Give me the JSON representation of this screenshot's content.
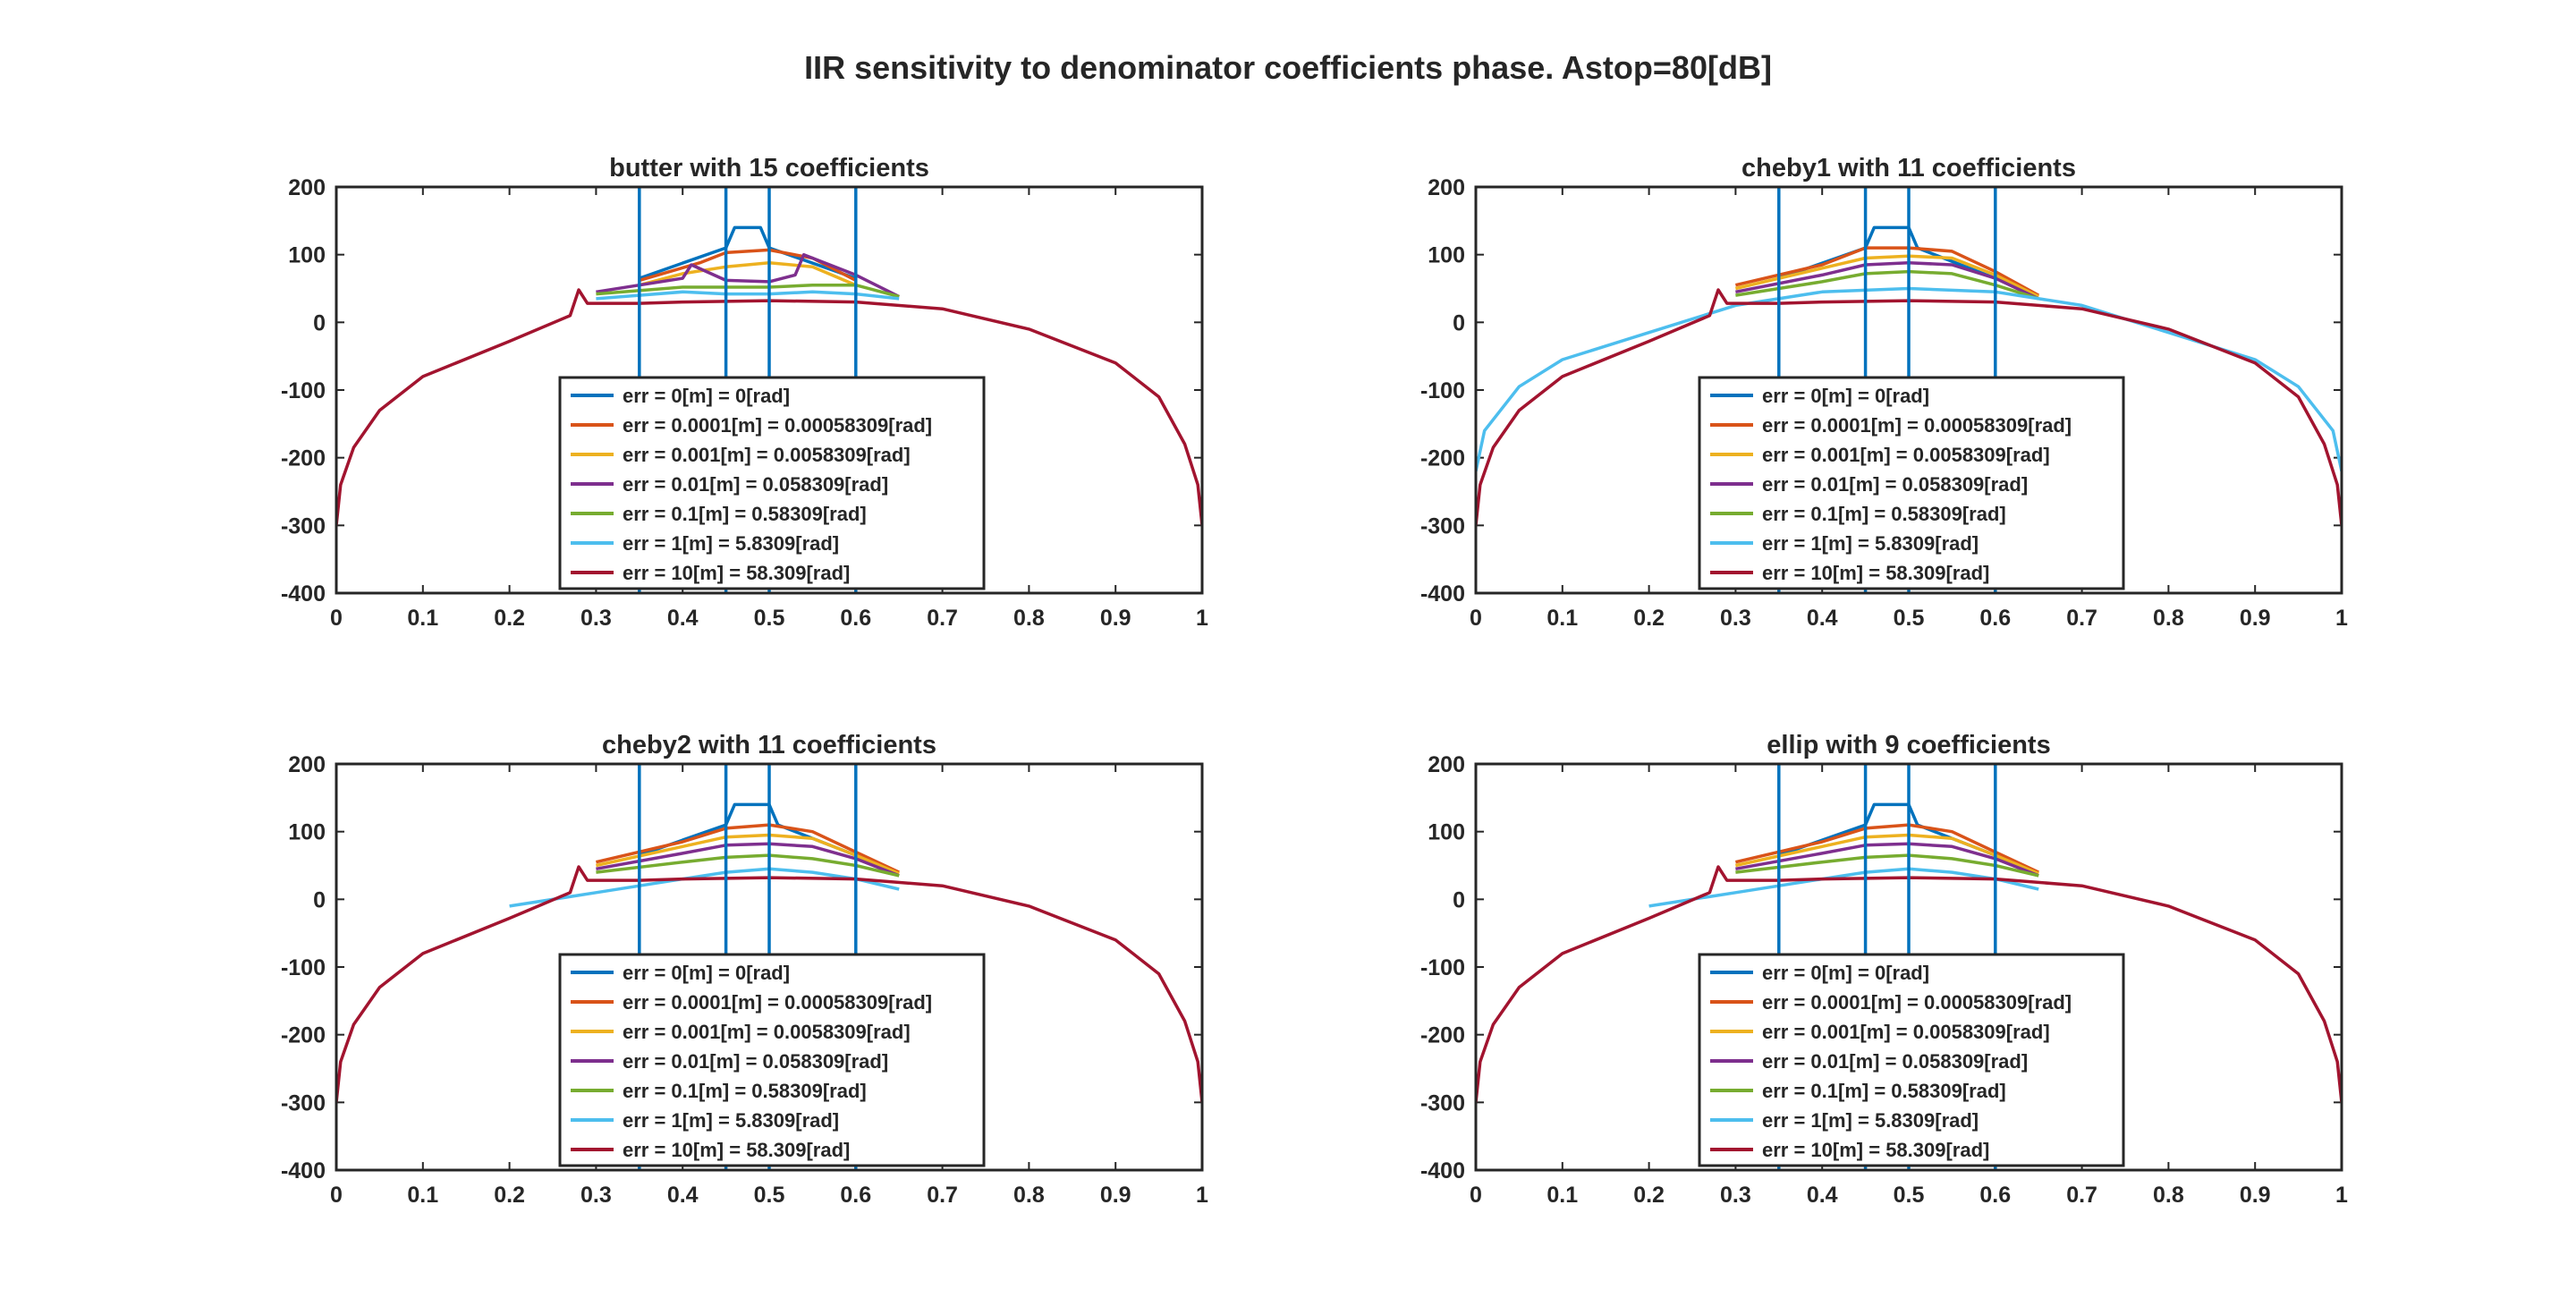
{
  "figure_title": "IIR sensitivity to denominator coefficients phase. Astop=80[dB]",
  "colors": {
    "series": [
      "#0072BD",
      "#D95319",
      "#EDB120",
      "#7E2F8E",
      "#77AC30",
      "#4DBEEE",
      "#A2142F"
    ],
    "axes": "#262626",
    "marker_lines": "#0072BD"
  },
  "legend_entries": [
    "err = 0[m] = 0[rad]",
    "err = 0.0001[m] = 0.00058309[rad]",
    "err = 0.001[m] = 0.0058309[rad]",
    "err = 0.01[m] = 0.058309[rad]",
    "err = 0.1[m] = 0.58309[rad]",
    "err = 1[m] = 5.8309[rad]",
    "err = 10[m] = 58.309[rad]"
  ],
  "chart_data": [
    {
      "type": "line",
      "title": "butter with 15 coefficients",
      "xlim": [
        0,
        1
      ],
      "ylim": [
        -400,
        200
      ],
      "xticks": [
        "0",
        "0.1",
        "0.2",
        "0.3",
        "0.4",
        "0.5",
        "0.6",
        "0.7",
        "0.8",
        "0.9",
        "1"
      ],
      "yticks": [
        "200",
        "100",
        "0",
        "-100",
        "-200",
        "-300",
        "-400"
      ],
      "band_edges": [
        0.35,
        0.45,
        0.5,
        0.6
      ],
      "series": [
        {
          "name": "err = 0[m] = 0[rad]",
          "x": [
            0.35,
            0.45,
            0.46,
            0.49,
            0.5,
            0.6
          ],
          "y": [
            65,
            110,
            140,
            140,
            110,
            65
          ]
        },
        {
          "name": "err = 0.0001[m] = 0.00058309[rad]",
          "x": [
            0.35,
            0.42,
            0.45,
            0.5,
            0.55,
            0.6
          ],
          "y": [
            62,
            88,
            103,
            107,
            95,
            62
          ]
        },
        {
          "name": "err = 0.001[m] = 0.0058309[rad]",
          "x": [
            0.35,
            0.4,
            0.45,
            0.5,
            0.55,
            0.6
          ],
          "y": [
            55,
            72,
            82,
            88,
            82,
            55
          ]
        },
        {
          "name": "err = 0.01[m] = 0.058309[rad]",
          "x": [
            0.3,
            0.4,
            0.41,
            0.45,
            0.5,
            0.53,
            0.54,
            0.6,
            0.65
          ],
          "y": [
            45,
            65,
            85,
            62,
            60,
            70,
            100,
            70,
            38
          ]
        },
        {
          "name": "err = 0.1[m] = 0.58309[rad]",
          "x": [
            0.3,
            0.4,
            0.45,
            0.5,
            0.55,
            0.6,
            0.65
          ],
          "y": [
            42,
            52,
            52,
            52,
            55,
            55,
            38
          ]
        },
        {
          "name": "err = 1[m] = 5.8309[rad]",
          "x": [
            0.3,
            0.35,
            0.4,
            0.45,
            0.5,
            0.55,
            0.6,
            0.65
          ],
          "y": [
            35,
            40,
            45,
            42,
            42,
            45,
            42,
            35
          ]
        },
        {
          "name": "err = 10[m] = 58.309[rad]",
          "x": [
            0,
            0.005,
            0.02,
            0.05,
            0.1,
            0.2,
            0.27,
            0.28,
            0.29,
            0.35,
            0.4,
            0.5,
            0.6,
            0.7,
            0.8,
            0.9,
            0.95,
            0.98,
            0.995,
            1
          ],
          "y": [
            -300,
            -240,
            -185,
            -130,
            -80,
            -28,
            10,
            48,
            28,
            28,
            30,
            32,
            30,
            20,
            -10,
            -60,
            -110,
            -180,
            -240,
            -300
          ]
        }
      ]
    },
    {
      "type": "line",
      "title": "cheby1 with 11 coefficients",
      "xlim": [
        0,
        1
      ],
      "ylim": [
        -400,
        200
      ],
      "xticks": [
        "0",
        "0.1",
        "0.2",
        "0.3",
        "0.4",
        "0.5",
        "0.6",
        "0.7",
        "0.8",
        "0.9",
        "1"
      ],
      "yticks": [
        "200",
        "100",
        "0",
        "-100",
        "-200",
        "-300",
        "-400"
      ],
      "band_edges": [
        0.35,
        0.45,
        0.5,
        0.6
      ],
      "series": [
        {
          "name": "err = 0[m] = 0[rad]",
          "x": [
            0.35,
            0.45,
            0.46,
            0.5,
            0.51,
            0.6
          ],
          "y": [
            65,
            110,
            140,
            140,
            110,
            65
          ]
        },
        {
          "name": "err = 0.0001[m] = 0.00058309[rad]",
          "x": [
            0.3,
            0.4,
            0.45,
            0.5,
            0.55,
            0.6,
            0.65
          ],
          "y": [
            55,
            85,
            110,
            110,
            105,
            75,
            40
          ]
        },
        {
          "name": "err = 0.001[m] = 0.0058309[rad]",
          "x": [
            0.3,
            0.4,
            0.45,
            0.5,
            0.55,
            0.6,
            0.65
          ],
          "y": [
            50,
            80,
            95,
            98,
            95,
            70,
            38
          ]
        },
        {
          "name": "err = 0.01[m] = 0.058309[rad]",
          "x": [
            0.3,
            0.4,
            0.45,
            0.5,
            0.55,
            0.6,
            0.65
          ],
          "y": [
            45,
            70,
            85,
            88,
            85,
            65,
            35
          ]
        },
        {
          "name": "err = 0.1[m] = 0.58309[rad]",
          "x": [
            0.3,
            0.4,
            0.45,
            0.5,
            0.55,
            0.6,
            0.65
          ],
          "y": [
            40,
            60,
            72,
            75,
            72,
            55,
            35
          ]
        },
        {
          "name": "err = 1[m] = 5.8309[rad]",
          "x": [
            0,
            0.01,
            0.05,
            0.1,
            0.2,
            0.3,
            0.4,
            0.5,
            0.6,
            0.7,
            0.8,
            0.9,
            0.95,
            0.99,
            1
          ],
          "y": [
            -220,
            -160,
            -95,
            -55,
            -15,
            25,
            45,
            50,
            45,
            25,
            -15,
            -55,
            -95,
            -160,
            -220
          ]
        },
        {
          "name": "err = 10[m] = 58.309[rad]",
          "x": [
            0,
            0.005,
            0.02,
            0.05,
            0.1,
            0.2,
            0.27,
            0.28,
            0.29,
            0.35,
            0.4,
            0.5,
            0.6,
            0.7,
            0.8,
            0.9,
            0.95,
            0.98,
            0.995,
            1
          ],
          "y": [
            -300,
            -240,
            -185,
            -130,
            -80,
            -28,
            10,
            48,
            28,
            28,
            30,
            32,
            30,
            20,
            -10,
            -60,
            -110,
            -180,
            -240,
            -300
          ]
        }
      ]
    },
    {
      "type": "line",
      "title": "cheby2 with 11 coefficients",
      "xlim": [
        0,
        1
      ],
      "ylim": [
        -400,
        200
      ],
      "xticks": [
        "0",
        "0.1",
        "0.2",
        "0.3",
        "0.4",
        "0.5",
        "0.6",
        "0.7",
        "0.8",
        "0.9",
        "1"
      ],
      "yticks": [
        "200",
        "100",
        "0",
        "-100",
        "-200",
        "-300",
        "-400"
      ],
      "band_edges": [
        0.35,
        0.45,
        0.5,
        0.6
      ],
      "series": [
        {
          "name": "err = 0[m] = 0[rad]",
          "x": [
            0.35,
            0.45,
            0.46,
            0.5,
            0.51,
            0.6
          ],
          "y": [
            65,
            110,
            140,
            140,
            110,
            65
          ]
        },
        {
          "name": "err = 0.0001[m] = 0.00058309[rad]",
          "x": [
            0.3,
            0.4,
            0.45,
            0.5,
            0.55,
            0.6,
            0.65
          ],
          "y": [
            55,
            85,
            105,
            110,
            100,
            70,
            40
          ]
        },
        {
          "name": "err = 0.001[m] = 0.0058309[rad]",
          "x": [
            0.3,
            0.4,
            0.45,
            0.5,
            0.55,
            0.6,
            0.65
          ],
          "y": [
            50,
            78,
            92,
            95,
            90,
            65,
            38
          ]
        },
        {
          "name": "err = 0.01[m] = 0.058309[rad]",
          "x": [
            0.3,
            0.4,
            0.45,
            0.5,
            0.55,
            0.6,
            0.65
          ],
          "y": [
            45,
            68,
            80,
            82,
            78,
            60,
            35
          ]
        },
        {
          "name": "err = 0.1[m] = 0.58309[rad]",
          "x": [
            0.3,
            0.4,
            0.45,
            0.5,
            0.55,
            0.6,
            0.65
          ],
          "y": [
            40,
            55,
            62,
            65,
            60,
            50,
            35
          ]
        },
        {
          "name": "err = 1[m] = 5.8309[rad]",
          "x": [
            0.2,
            0.3,
            0.35,
            0.4,
            0.45,
            0.5,
            0.55,
            0.6,
            0.65
          ],
          "y": [
            -10,
            10,
            20,
            30,
            40,
            45,
            40,
            30,
            15
          ]
        },
        {
          "name": "err = 10[m] = 58.309[rad]",
          "x": [
            0,
            0.005,
            0.02,
            0.05,
            0.1,
            0.2,
            0.27,
            0.28,
            0.29,
            0.35,
            0.4,
            0.5,
            0.6,
            0.7,
            0.8,
            0.9,
            0.95,
            0.98,
            0.995,
            1
          ],
          "y": [
            -300,
            -240,
            -185,
            -130,
            -80,
            -28,
            10,
            48,
            28,
            28,
            30,
            32,
            30,
            20,
            -10,
            -60,
            -110,
            -180,
            -240,
            -300
          ]
        }
      ]
    },
    {
      "type": "line",
      "title": "ellip with 9 coefficients",
      "xlim": [
        0,
        1
      ],
      "ylim": [
        -400,
        200
      ],
      "xticks": [
        "0",
        "0.1",
        "0.2",
        "0.3",
        "0.4",
        "0.5",
        "0.6",
        "0.7",
        "0.8",
        "0.9",
        "1"
      ],
      "yticks": [
        "200",
        "100",
        "0",
        "-100",
        "-200",
        "-300",
        "-400"
      ],
      "band_edges": [
        0.35,
        0.45,
        0.5,
        0.6
      ],
      "series": [
        {
          "name": "err = 0[m] = 0[rad]",
          "x": [
            0.35,
            0.45,
            0.46,
            0.5,
            0.51,
            0.6
          ],
          "y": [
            65,
            110,
            140,
            140,
            110,
            65
          ]
        },
        {
          "name": "err = 0.0001[m] = 0.00058309[rad]",
          "x": [
            0.3,
            0.4,
            0.45,
            0.5,
            0.55,
            0.6,
            0.65
          ],
          "y": [
            55,
            85,
            105,
            110,
            100,
            70,
            40
          ]
        },
        {
          "name": "err = 0.001[m] = 0.0058309[rad]",
          "x": [
            0.3,
            0.4,
            0.45,
            0.5,
            0.55,
            0.6,
            0.65
          ],
          "y": [
            50,
            78,
            92,
            95,
            90,
            65,
            38
          ]
        },
        {
          "name": "err = 0.01[m] = 0.058309[rad]",
          "x": [
            0.3,
            0.4,
            0.45,
            0.5,
            0.55,
            0.6,
            0.65
          ],
          "y": [
            45,
            68,
            80,
            82,
            78,
            60,
            35
          ]
        },
        {
          "name": "err = 0.1[m] = 0.58309[rad]",
          "x": [
            0.3,
            0.4,
            0.45,
            0.5,
            0.55,
            0.6,
            0.65
          ],
          "y": [
            40,
            55,
            62,
            65,
            60,
            50,
            35
          ]
        },
        {
          "name": "err = 1[m] = 5.8309[rad]",
          "x": [
            0.2,
            0.3,
            0.35,
            0.4,
            0.45,
            0.5,
            0.55,
            0.6,
            0.65
          ],
          "y": [
            -10,
            10,
            20,
            30,
            40,
            45,
            40,
            30,
            15
          ]
        },
        {
          "name": "err = 10[m] = 58.309[rad]",
          "x": [
            0,
            0.005,
            0.02,
            0.05,
            0.1,
            0.2,
            0.27,
            0.28,
            0.29,
            0.35,
            0.4,
            0.5,
            0.6,
            0.7,
            0.8,
            0.9,
            0.95,
            0.98,
            0.995,
            1
          ],
          "y": [
            -300,
            -240,
            -185,
            -130,
            -80,
            -28,
            10,
            48,
            28,
            28,
            30,
            32,
            30,
            20,
            -10,
            -60,
            -110,
            -180,
            -240,
            -300
          ]
        }
      ]
    }
  ]
}
